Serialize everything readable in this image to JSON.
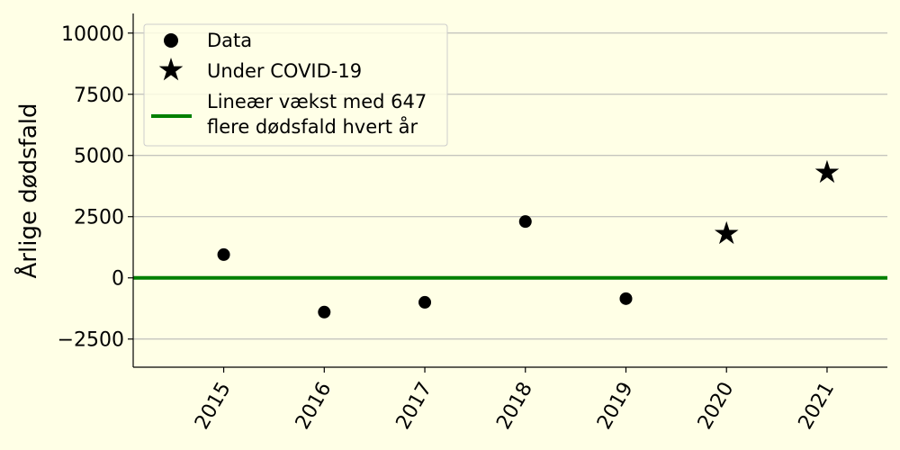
{
  "chart_data": {
    "type": "scatter",
    "title": "",
    "xlabel": "",
    "ylabel": "Årlige dødsfald",
    "xlim": [
      2014.1,
      2021.6
    ],
    "ylim": [
      -3650,
      10800
    ],
    "x_ticks": [
      2015,
      2016,
      2017,
      2018,
      2019,
      2020,
      2021
    ],
    "x_tick_labels": [
      "2015",
      "2016",
      "2017",
      "2018",
      "2019",
      "2020",
      "2021"
    ],
    "y_ticks": [
      -2500,
      0,
      2500,
      5000,
      7500,
      10000
    ],
    "y_tick_labels": [
      "−2500",
      "0",
      "2500",
      "5000",
      "7500",
      "10000"
    ],
    "grid": "horizontal",
    "legend_position": "top-left",
    "series": [
      {
        "name": "Data",
        "marker": "circle",
        "color": "#000000",
        "x": [
          2015,
          2016,
          2017,
          2018,
          2019
        ],
        "y": [
          950,
          -1400,
          -1000,
          2300,
          -850
        ]
      },
      {
        "name": "Under COVID-19",
        "marker": "star",
        "color": "#000000",
        "x": [
          2020,
          2021
        ],
        "y": [
          1800,
          4300
        ]
      },
      {
        "name_lines": [
          "Lineær vækst med 647",
          "flere dødsfald hvert år"
        ],
        "marker": "line",
        "color": "#008000",
        "y": [
          0,
          0
        ]
      }
    ]
  },
  "colors": {
    "background": "#ffffe6",
    "grid": "#b0b0b0",
    "axis": "#000000",
    "trend": "#008000"
  }
}
